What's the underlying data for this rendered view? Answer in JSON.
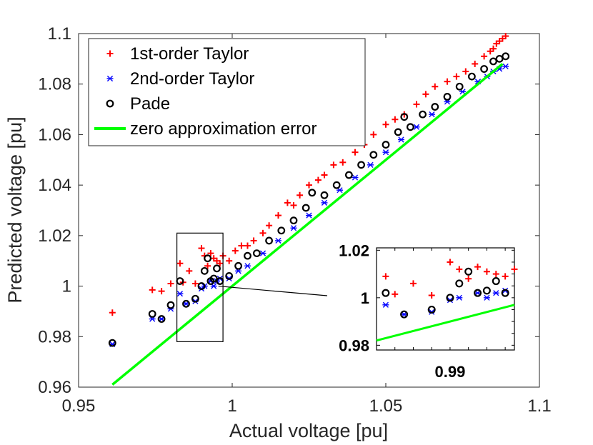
{
  "chart_data": {
    "type": "scatter",
    "xlabel": "Actual voltage [pu]",
    "ylabel": "Predicted voltage [pu]",
    "xlim": [
      0.95,
      1.1
    ],
    "ylim": [
      0.96,
      1.1
    ],
    "xticks": [
      "0.95",
      "1",
      "1.05",
      "1.1"
    ],
    "yticks": [
      "0.96",
      "0.98",
      "1",
      "1.02",
      "1.04",
      "1.06",
      "1.08",
      "1.1"
    ],
    "legend_position": "top-left",
    "series": [
      {
        "name": "1st-order Taylor",
        "marker": "plus",
        "color": "#ff0000",
        "x": [
          0.961,
          0.974,
          0.977,
          0.98,
          0.983,
          0.984,
          0.986,
          0.988,
          0.99,
          0.991,
          0.992,
          0.993,
          0.994,
          0.995,
          0.996,
          0.997,
          0.999,
          1.001,
          1.003,
          1.005,
          1.007,
          1.01,
          1.012,
          1.015,
          1.018,
          1.02,
          1.022,
          1.025,
          1.028,
          1.03,
          1.033,
          1.036,
          1.04,
          1.043,
          1.046,
          1.05,
          1.053,
          1.056,
          1.06,
          1.063,
          1.066,
          1.07,
          1.073,
          1.076,
          1.079,
          1.082,
          1.084,
          1.085,
          1.086,
          1.087,
          1.088,
          1.089
        ],
        "y": [
          0.9895,
          0.9985,
          0.998,
          1.001,
          1.009,
          1.0015,
          1.006,
          1.001,
          1.015,
          1.012,
          1.008,
          1.013,
          1.011,
          1.01,
          1.009,
          1.012,
          1.01,
          1.014,
          1.016,
          1.016,
          1.018,
          1.021,
          1.024,
          1.028,
          1.033,
          1.032,
          1.036,
          1.04,
          1.042,
          1.044,
          1.048,
          1.049,
          1.053,
          1.056,
          1.06,
          1.064,
          1.066,
          1.068,
          1.072,
          1.076,
          1.079,
          1.081,
          1.083,
          1.085,
          1.088,
          1.091,
          1.093,
          1.094,
          1.096,
          1.097,
          1.098,
          1.099
        ]
      },
      {
        "name": "2nd-order Taylor",
        "marker": "asterisk",
        "color": "#0000ff",
        "x": [
          0.961,
          0.974,
          0.977,
          0.98,
          0.983,
          0.985,
          0.988,
          0.99,
          0.991,
          0.993,
          0.994,
          0.995,
          0.996,
          0.999,
          1.002,
          1.005,
          1.01,
          1.015,
          1.02,
          1.025,
          1.03,
          1.035,
          1.04,
          1.045,
          1.05,
          1.055,
          1.06,
          1.065,
          1.07,
          1.075,
          1.08,
          1.083,
          1.085,
          1.087,
          1.089
        ],
        "y": [
          0.977,
          0.987,
          0.987,
          0.991,
          0.997,
          0.993,
          0.994,
          0.999,
          1.0,
          1.002,
          1.0,
          1.002,
          1.003,
          1.003,
          1.006,
          1.008,
          1.013,
          1.018,
          1.023,
          1.028,
          1.033,
          1.038,
          1.043,
          1.048,
          1.053,
          1.058,
          1.063,
          1.068,
          1.073,
          1.077,
          1.081,
          1.083,
          1.085,
          1.086,
          1.087
        ]
      },
      {
        "name": "Pade",
        "marker": "circle",
        "color": "#000000",
        "x": [
          0.961,
          0.974,
          0.977,
          0.98,
          0.983,
          0.985,
          0.988,
          0.99,
          0.991,
          0.992,
          0.993,
          0.994,
          0.995,
          0.996,
          0.999,
          1.002,
          1.005,
          1.008,
          1.012,
          1.016,
          1.02,
          1.024,
          1.026,
          1.03,
          1.034,
          1.038,
          1.042,
          1.046,
          1.05,
          1.054,
          1.056,
          1.058,
          1.062,
          1.066,
          1.07,
          1.074,
          1.078,
          1.082,
          1.085,
          1.087,
          1.089
        ],
        "y": [
          0.9775,
          0.989,
          0.987,
          0.9925,
          1.002,
          0.993,
          0.995,
          1.0,
          1.006,
          1.011,
          1.002,
          1.003,
          1.007,
          1.002,
          1.004,
          1.008,
          1.012,
          1.013,
          1.018,
          1.022,
          1.026,
          1.031,
          1.037,
          1.036,
          1.04,
          1.044,
          1.048,
          1.052,
          1.056,
          1.061,
          1.067,
          1.063,
          1.068,
          1.071,
          1.075,
          1.079,
          1.083,
          1.086,
          1.089,
          1.09,
          1.091
        ]
      },
      {
        "name": "zero approximation error",
        "marker": "line",
        "color": "#00ff00",
        "x": [
          0.961,
          1.088
        ],
        "y": [
          0.961,
          1.088
        ]
      }
    ],
    "inset": {
      "xlim": [
        0.982,
        0.997
      ],
      "ylim": [
        0.978,
        1.021
      ],
      "xticks": [
        "0.99"
      ],
      "yticks": [
        "0.98",
        "1",
        "1.02"
      ]
    }
  }
}
